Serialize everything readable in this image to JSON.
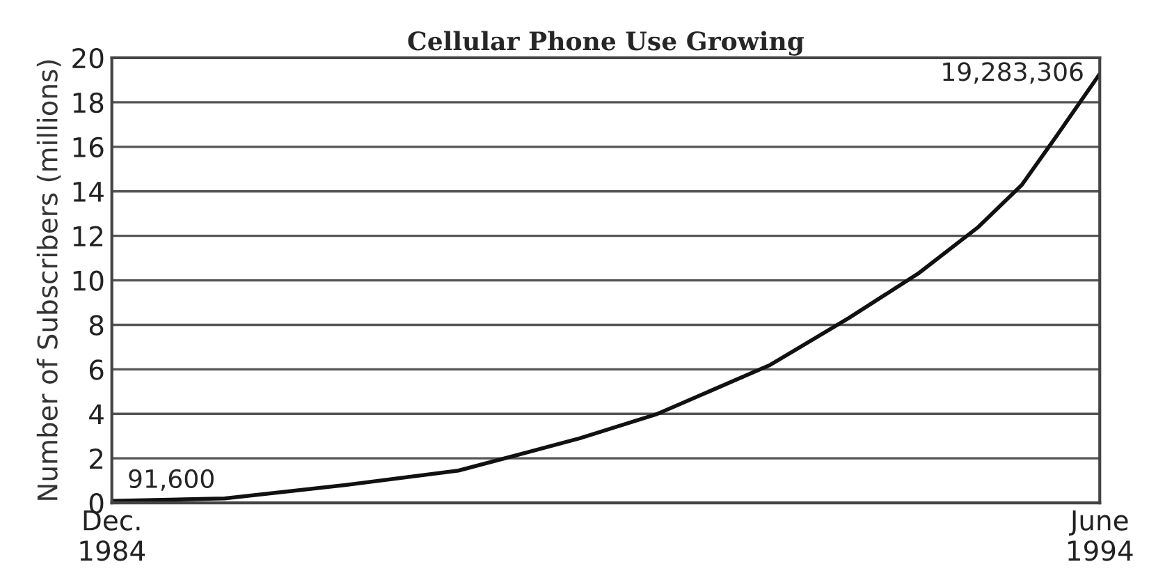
{
  "chart_data": {
    "type": "line",
    "title": "Cellular Phone Use Growing",
    "ylabel": "Number of Subscribers (millions)",
    "x": [
      "1984-12",
      "1986-01",
      "1987-03",
      "1988-04",
      "1989-06",
      "1990-03",
      "1991-04",
      "1992-01",
      "1992-09",
      "1993-04",
      "1993-09",
      "1994-01",
      "1994-06"
    ],
    "series": [
      {
        "color": "#111111",
        "values": [
          0.09,
          0.2,
          0.8,
          1.45,
          2.9,
          4.0,
          6.2,
          8.3,
          10.3,
          12.4,
          14.3,
          16.5,
          19.28
        ]
      }
    ],
    "annotations": [
      {
        "text": "91,600",
        "x": "1984-12",
        "y": 0.09
      },
      {
        "text": "19,283,306",
        "x": "1994-06",
        "y": 19.28
      }
    ],
    "xlim": [
      "1984-12",
      "1994-06"
    ],
    "xticks": [
      {
        "value": "1984-12",
        "label": "Dec.\n1984"
      },
      {
        "value": "1994-06",
        "label": "June\n1994"
      }
    ],
    "ylim": [
      0,
      20
    ],
    "yticks": [
      0,
      2,
      4,
      6,
      8,
      10,
      12,
      14,
      16,
      18,
      20
    ],
    "grid": "y",
    "marker": "none",
    "line_style": "solid"
  }
}
